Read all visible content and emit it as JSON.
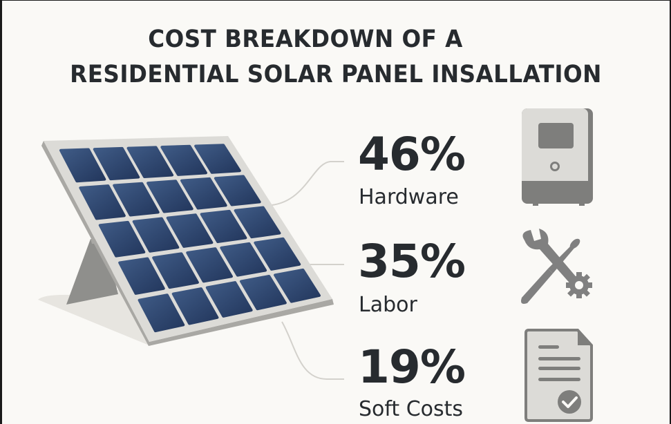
{
  "title": {
    "line1": "COST BREAKDOWN OF A",
    "line2": "RESIDENTIAL SOLAR PANEL INSALLATION"
  },
  "items": [
    {
      "percent": "46%",
      "label": "Hardware",
      "icon": "inverter-icon"
    },
    {
      "percent": "35%",
      "label": "Labor",
      "icon": "wrench-screwdriver-gear-icon"
    },
    {
      "percent": "19%",
      "label": "Soft Costs",
      "icon": "document-check-icon"
    }
  ],
  "colors": {
    "background": "#faf9f6",
    "text": "#272b2f",
    "panel_cell": "#2b4068",
    "panel_frame": "#d9d8d4",
    "icon_gray": "#7d7d7b",
    "connector": "#cfcdc8"
  },
  "chart_data": {
    "type": "pie",
    "title": "Cost Breakdown of a Residential Solar Panel Insallation",
    "categories": [
      "Hardware",
      "Labor",
      "Soft Costs"
    ],
    "values": [
      46,
      35,
      19
    ],
    "unit": "%",
    "legend_position": "right"
  }
}
